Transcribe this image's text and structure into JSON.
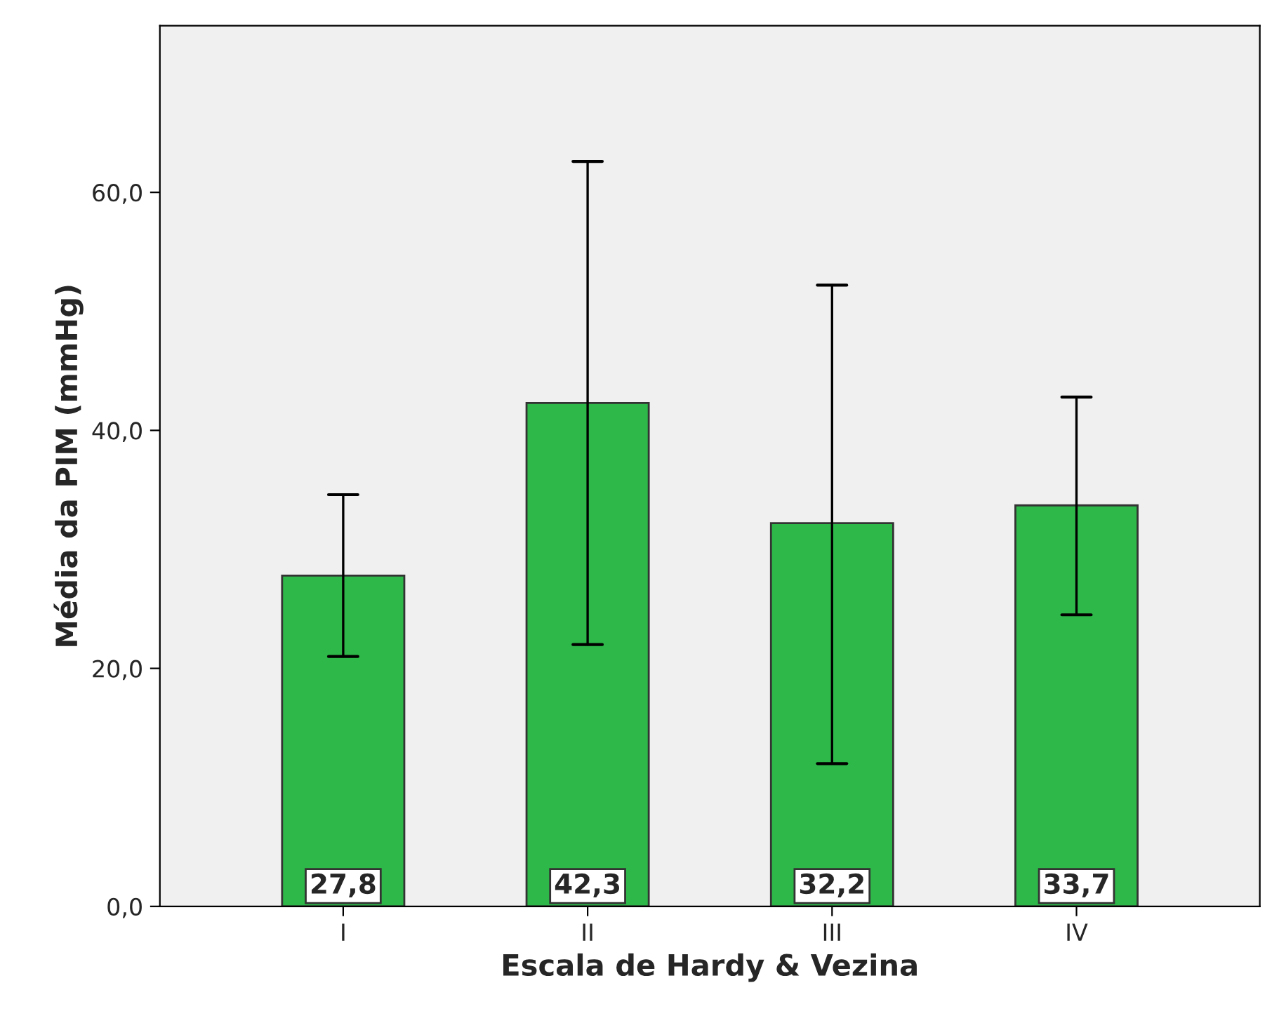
{
  "chart_data": {
    "type": "bar",
    "xlabel": "Escala de Hardy & Vezina",
    "ylabel": "Média da PIM (mmHg)",
    "categories": [
      "I",
      "II",
      "III",
      "IV"
    ],
    "values": [
      27.8,
      42.3,
      32.2,
      33.7
    ],
    "value_labels": [
      "27,8",
      "42,3",
      "32,2",
      "33,7"
    ],
    "color": "#2eb84a",
    "errors": [
      [
        21.0,
        34.6
      ],
      [
        22.0,
        62.6
      ],
      [
        12.0,
        52.2
      ],
      [
        24.5,
        42.8
      ]
    ],
    "ylim": [
      0,
      74
    ],
    "yticks": [
      {
        "value": 0,
        "label": "0,0"
      },
      {
        "value": 20,
        "label": "20,0"
      },
      {
        "value": 40,
        "label": "40,0"
      },
      {
        "value": 60,
        "label": "60,0"
      }
    ],
    "grid": false,
    "legend": false
  }
}
